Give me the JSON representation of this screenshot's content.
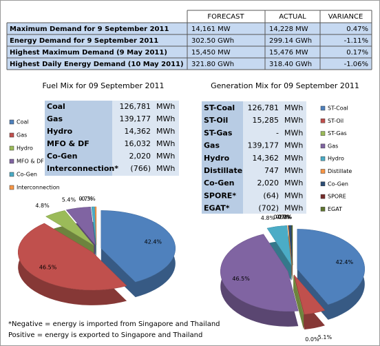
{
  "summary_table": {
    "header": [
      "FORECAST",
      "ACTUAL",
      "VARIANCE"
    ],
    "rows": [
      [
        "Maximum Demand for 9 September 2011",
        "14,161 MW",
        "14,228 MW",
        "0.47%"
      ],
      [
        "Energy Demand for 9 September 2011",
        "302.50 GWh",
        "299.14 GWh",
        "-1.11%"
      ],
      [
        "Highest Maximum Demand (9 May 2011)",
        "15,450 MW",
        "15,476 MW",
        "0.17%"
      ],
      [
        "Highest Daily Energy Demand (10 May 2011)",
        "321.80 GWh",
        "318.40 GWh",
        "-1.06%"
      ]
    ]
  },
  "fuel_mix_table": {
    "rows": [
      [
        "Coal",
        "126,781",
        "MWh"
      ],
      [
        "Gas",
        "139,177",
        "MWh"
      ],
      [
        "Hydro",
        "14,362",
        "MWh"
      ],
      [
        "MFO & DF",
        "16,032",
        "MWh"
      ],
      [
        "Co-Gen",
        "2,020",
        "MWh"
      ],
      [
        "Interconnection*",
        "(766)",
        "MWh"
      ]
    ]
  },
  "generation_mix_table": {
    "rows": [
      [
        "ST-Coal",
        "126,781",
        "MWh"
      ],
      [
        "ST-Oil",
        "15,285",
        "MWh"
      ],
      [
        "ST-Gas",
        "-",
        "MWh"
      ],
      [
        "Gas",
        "139,177",
        "MWh"
      ],
      [
        "Hydro",
        "14,362",
        "MWh"
      ],
      [
        "Distillate",
        "747",
        "MWh"
      ],
      [
        "Co-Gen",
        "2,020",
        "MWh"
      ],
      [
        "SPORE*",
        "(64)",
        "MWh"
      ],
      [
        "EGAT*",
        "(702)",
        "MWh"
      ]
    ]
  },
  "chart_data": [
    {
      "type": "pie",
      "title": "Fuel Mix for 09 September 2011",
      "categories": [
        "Coal",
        "Gas",
        "Hydro",
        "MFO & DF",
        "Co-Gen",
        "Interconnection"
      ],
      "values": [
        42.4,
        46.5,
        4.8,
        5.4,
        0.7,
        -0.3
      ],
      "value_labels": [
        "42.4%",
        "46.5%",
        "4.8%",
        "5.4%",
        "0.7%",
        "-0.3%"
      ],
      "colors": [
        "#4f81bd",
        "#c0504d",
        "#9bbb59",
        "#8064a2",
        "#4bacc6",
        "#f79646"
      ]
    },
    {
      "type": "pie",
      "title": "Generation Mix for 09 September 2011",
      "categories": [
        "ST-Coal",
        "ST-Oil",
        "ST-Gas",
        "Gas",
        "Hydro",
        "Distillate",
        "Co-Gen",
        "SPORE",
        "EGAT"
      ],
      "values": [
        42.4,
        5.1,
        0.0,
        46.5,
        4.8,
        0.2,
        0.7,
        0.0,
        -0.2
      ],
      "value_labels": [
        "42.4%",
        "5.1%",
        "0.0%",
        "46.5%",
        "4.8%",
        "0.2%",
        "0.7%",
        "0.0%",
        "-0.2%"
      ],
      "colors": [
        "#4f81bd",
        "#c0504d",
        "#9bbb59",
        "#8064a2",
        "#4bacc6",
        "#f79646",
        "#2c4d75",
        "#772c2a",
        "#5f7530"
      ]
    }
  ],
  "footnote": [
    "*Negative = energy is imported from Singapore and Thailand",
    "Positive = energy is exported to Singapore and Thailand"
  ]
}
